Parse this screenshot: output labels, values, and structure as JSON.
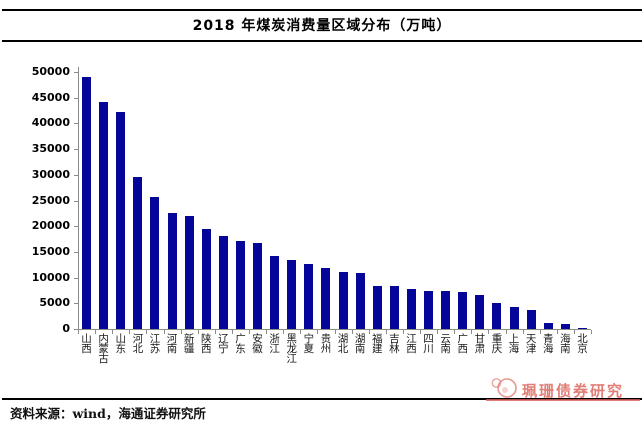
{
  "title": "2018 年煤炭消费量区域分布（万吨）",
  "source": {
    "text": "资料来源：wind，海通证券研究所"
  },
  "watermark": {
    "brand": "珮珊债券研究"
  },
  "colors": {
    "bar": "#05059a",
    "axis_gray": "#8c8c8c",
    "watermark_red": "#d95f55",
    "rule_black": "#000000"
  },
  "chart_data": {
    "type": "bar",
    "title": "2018 年煤炭消费量区域分布（万吨）",
    "unit": "万吨",
    "categories": [
      "山西",
      "内蒙古",
      "山东",
      "河北",
      "江苏",
      "河南",
      "新疆",
      "陕西",
      "辽宁",
      "广东",
      "安徽",
      "浙江",
      "黑龙江",
      "宁夏",
      "贵州",
      "湖北",
      "湖南",
      "福建",
      "吉林",
      "江西",
      "四川",
      "云南",
      "广西",
      "甘肃",
      "重庆",
      "上海",
      "天津",
      "青海",
      "海南",
      "北京"
    ],
    "values": [
      49000,
      44200,
      42300,
      29500,
      25600,
      22500,
      22000,
      19500,
      18000,
      17200,
      16700,
      14200,
      13400,
      12700,
      11900,
      11000,
      10800,
      8400,
      8300,
      7800,
      7400,
      7300,
      7200,
      6600,
      5000,
      4300,
      3700,
      1100,
      900,
      200
    ],
    "xlabel": "",
    "ylabel": "",
    "ylim": [
      0,
      50000
    ],
    "yticks": [
      0,
      5000,
      10000,
      15000,
      20000,
      25000,
      30000,
      35000,
      40000,
      45000,
      50000
    ],
    "grid": false,
    "legend": null,
    "bar_color": "#05059a"
  }
}
